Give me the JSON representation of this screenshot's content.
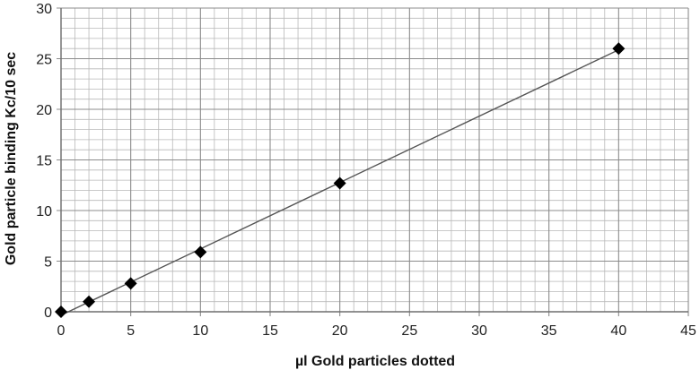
{
  "chart_data": {
    "type": "scatter",
    "title": "",
    "xlabel": "µl Gold particles dotted",
    "ylabel": "Gold particle binding Kc/10 sec",
    "xlim": [
      0,
      45
    ],
    "ylim": [
      0,
      30
    ],
    "x_major_step": 5,
    "y_major_step": 5,
    "x_minor_step": 1,
    "y_minor_step": 1,
    "grid": true,
    "legend": "none",
    "x_ticks": [
      "0",
      "5",
      "10",
      "15",
      "20",
      "25",
      "30",
      "35",
      "40",
      "45"
    ],
    "y_ticks": [
      "0",
      "5",
      "10",
      "15",
      "20",
      "25",
      "30"
    ],
    "series": [
      {
        "marker": "diamond",
        "color": "#000000",
        "points": [
          {
            "x": 0,
            "y": 0
          },
          {
            "x": 2,
            "y": 1.0
          },
          {
            "x": 5,
            "y": 2.8
          },
          {
            "x": 10,
            "y": 5.9
          },
          {
            "x": 20,
            "y": 12.7
          },
          {
            "x": 40,
            "y": 26.0
          }
        ]
      }
    ],
    "trendline": {
      "type": "linear",
      "from_x": 0,
      "to_x": 40,
      "color": "#555555"
    }
  },
  "colors": {
    "minor_grid": "#b8b8b8",
    "major_grid": "#8c8c8c",
    "axis": "#6e6e6e",
    "marker": "#000000"
  }
}
